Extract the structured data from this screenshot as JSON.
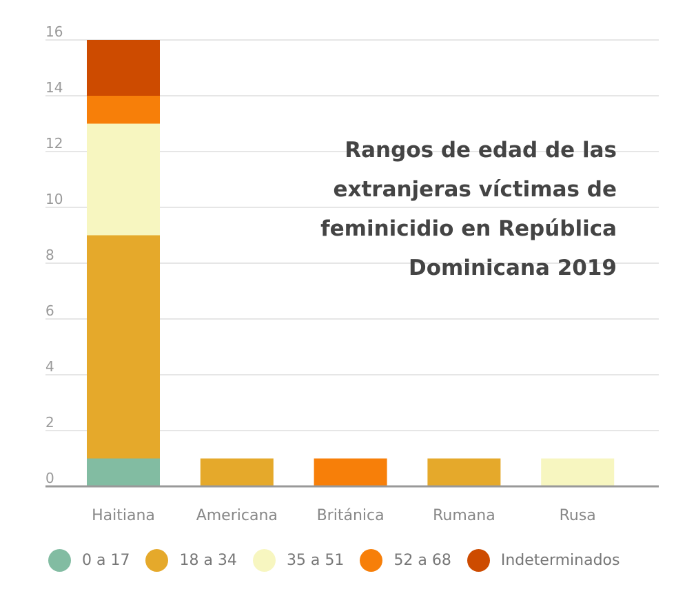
{
  "chart_data": {
    "type": "bar",
    "stacked": true,
    "title": "Rangos de edad de las extranjeras víctimas de feminicidio en República Dominicana 2019",
    "categories": [
      "Haitiana",
      "Americana",
      "Británica",
      "Rumana",
      "Rusa"
    ],
    "series": [
      {
        "name": "0 a 17",
        "color": "#82bca2",
        "values": [
          1,
          0,
          0,
          0,
          0
        ]
      },
      {
        "name": "18 a 34",
        "color": "#e5a92b",
        "values": [
          8,
          1,
          0,
          1,
          0
        ]
      },
      {
        "name": "35 a 51",
        "color": "#f7f6c0",
        "values": [
          4,
          0,
          0,
          0,
          1
        ]
      },
      {
        "name": "52 a 68",
        "color": "#f77f09",
        "values": [
          1,
          0,
          1,
          0,
          0
        ]
      },
      {
        "name": "Indeterminados",
        "color": "#cd4b00",
        "values": [
          2,
          0,
          0,
          0,
          0
        ]
      }
    ],
    "ylim": [
      0,
      16
    ],
    "yticks": [
      0,
      2,
      4,
      6,
      8,
      10,
      12,
      14,
      16
    ],
    "xlabel": "",
    "ylabel": "",
    "grid": true,
    "legend_position": "bottom"
  }
}
